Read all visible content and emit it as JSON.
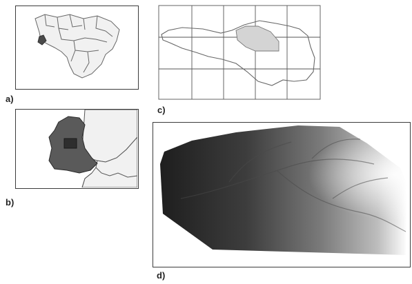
{
  "labels": {
    "a": "a)",
    "b": "b)",
    "c": "c)",
    "d": "d)"
  },
  "colors": {
    "frame": "#3a3a3a",
    "map_outline": "#666666",
    "region_fill": "#f1f1f1",
    "highlight_dark": "#5a5a5a",
    "highlight_darker": "#2e2e2e",
    "watershed_fill": "#d4d4d4",
    "grid": "#555555",
    "dem_low": "#1e1e1e",
    "dem_high": "#ffffff"
  }
}
